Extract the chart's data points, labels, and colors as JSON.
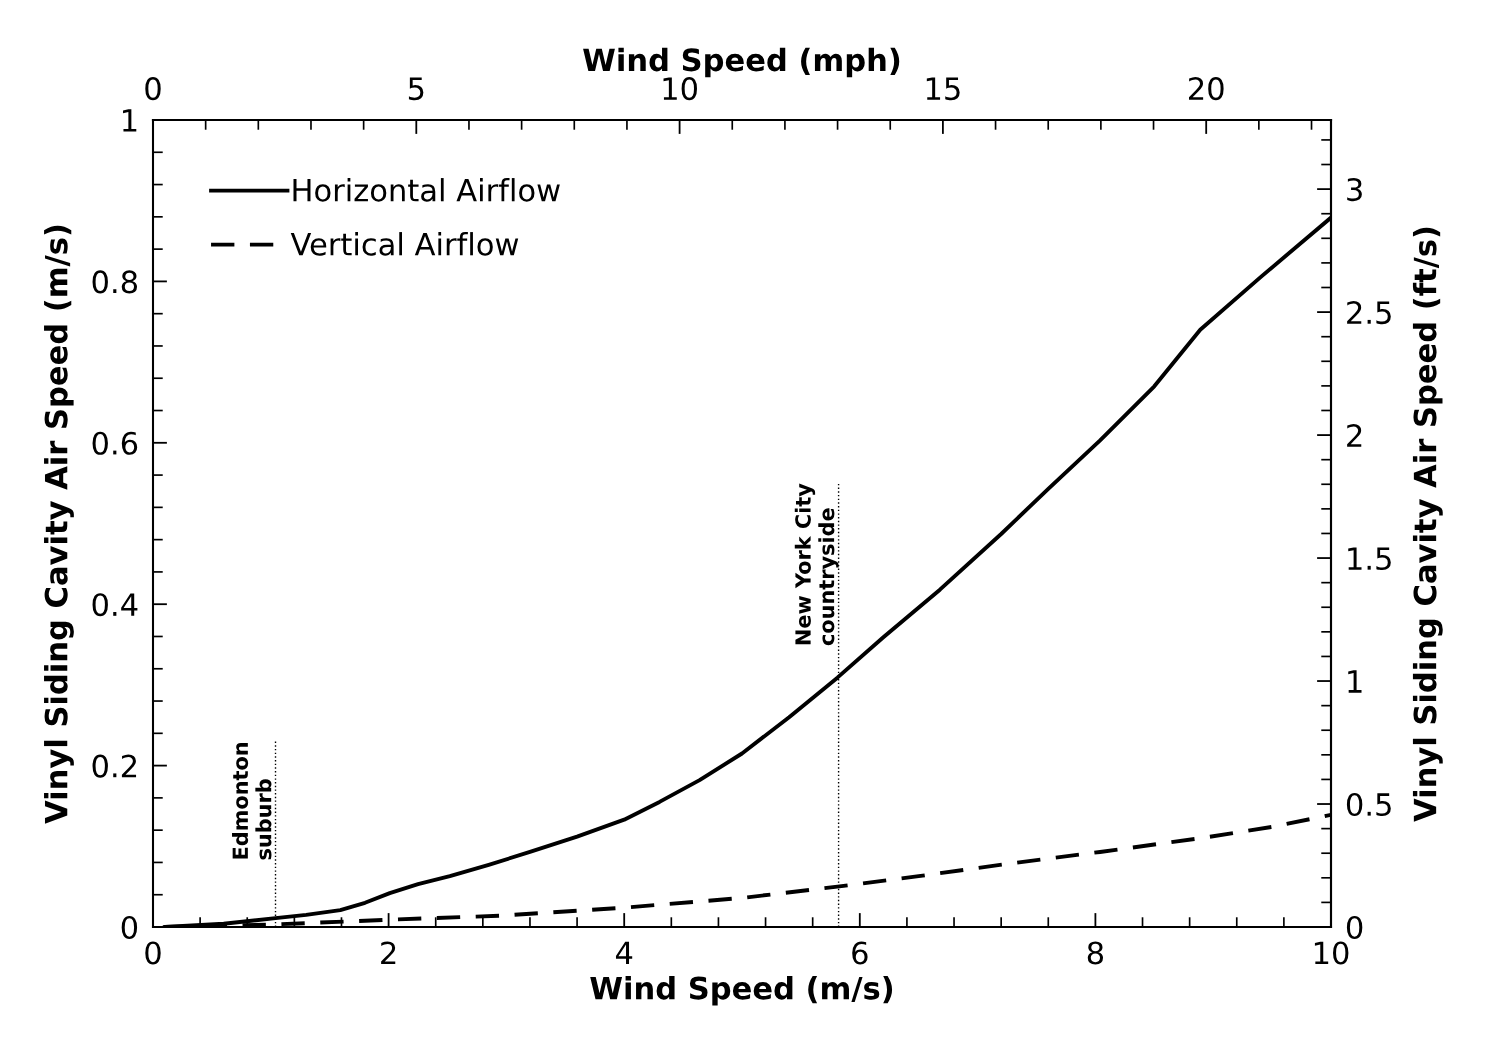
{
  "chart_data": {
    "type": "line",
    "xlabel": "Wind Speed (m/s)",
    "ylabel": "Vinyl Siding Cavity Air Speed (m/s)",
    "y2label": "Vinyl Siding Cavity Air Speed (ft/s)",
    "x2label": "Wind Speed (mph)",
    "xlim": [
      0,
      10
    ],
    "xticks": [
      0,
      2,
      4,
      6,
      8,
      10
    ],
    "ylim": [
      0,
      1
    ],
    "yticks": [
      0,
      0.2,
      0.4,
      0.6,
      0.8,
      1
    ],
    "x2lim": [
      0,
      22.37
    ],
    "x2ticks": [
      0,
      5,
      10,
      15,
      20
    ],
    "y2lim": [
      0,
      3.281
    ],
    "y2ticks": [
      0,
      0.5,
      1,
      1.5,
      2,
      2.5,
      3
    ],
    "grid": false,
    "legend": "top left",
    "series": [
      {
        "name": "Horizontal Airflow",
        "color": "#000000",
        "line_style": "solid",
        "x": [
          0.1,
          0.6,
          1.04,
          1.3,
          1.59,
          1.8,
          2.01,
          2.25,
          2.52,
          2.85,
          3.2,
          3.6,
          4.0,
          4.3,
          4.64,
          5.0,
          5.4,
          5.81,
          6.2,
          6.68,
          7.2,
          7.6,
          8.04,
          8.5,
          8.89,
          9.4,
          10.0
        ],
        "values": [
          0.0,
          0.004,
          0.011,
          0.015,
          0.021,
          0.03,
          0.042,
          0.053,
          0.063,
          0.077,
          0.093,
          0.112,
          0.133,
          0.155,
          0.182,
          0.215,
          0.26,
          0.309,
          0.359,
          0.418,
          0.487,
          0.543,
          0.603,
          0.67,
          0.74,
          0.805,
          0.879
        ]
      },
      {
        "name": "Vertical Airflow",
        "color": "#000000",
        "line_style": "dashed",
        "x": [
          0.1,
          1.0,
          2.0,
          2.95,
          4.0,
          5.0,
          5.81,
          6.5,
          7.19,
          8.04,
          8.89,
          9.5,
          10.0
        ],
        "values": [
          0.0,
          0.003,
          0.009,
          0.014,
          0.024,
          0.036,
          0.05,
          0.063,
          0.077,
          0.093,
          0.11,
          0.124,
          0.139
        ]
      }
    ],
    "ref_lines": [
      {
        "axis": "x",
        "value": 1.04,
        "label": "Edmonton\nsuburb",
        "color": "#000000",
        "line_style": "dotted"
      },
      {
        "axis": "x",
        "value": 5.82,
        "label": "New York City\ncountryside",
        "color": "#000000",
        "line_style": "dotted"
      }
    ]
  }
}
